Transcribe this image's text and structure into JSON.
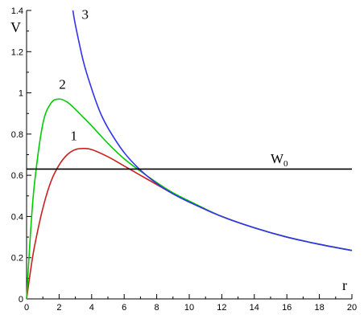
{
  "chart_data": {
    "type": "line",
    "xlabel": "r",
    "ylabel": "V",
    "xlim": [
      0,
      20
    ],
    "ylim": [
      0,
      1.4
    ],
    "x_ticks": [
      "0",
      "2",
      "4",
      "6",
      "8",
      "10",
      "12",
      "14",
      "16",
      "18",
      "20"
    ],
    "y_ticks": [
      "0",
      "0.2",
      "0.4",
      "0.6",
      "0.8",
      "1",
      "1.2",
      "1.4"
    ],
    "grid": false,
    "series": [
      {
        "name": "1",
        "color": "#cc2020",
        "x": [
          0,
          0.25,
          0.5,
          1,
          1.5,
          2,
          2.5,
          3,
          3.5,
          4,
          5,
          6,
          7,
          8,
          9,
          10,
          12,
          14,
          16,
          18,
          20
        ],
        "y": [
          0.0,
          0.14,
          0.26,
          0.44,
          0.57,
          0.65,
          0.7,
          0.725,
          0.73,
          0.725,
          0.69,
          0.645,
          0.6,
          0.555,
          0.51,
          0.47,
          0.4,
          0.345,
          0.3,
          0.265,
          0.235
        ]
      },
      {
        "name": "2",
        "color": "#00cc00",
        "x": [
          0,
          0.25,
          0.5,
          1,
          1.5,
          2,
          2.5,
          3,
          3.5,
          4,
          5,
          6,
          7,
          8,
          9,
          10,
          12,
          14,
          16,
          18,
          20
        ],
        "y": [
          0.0,
          0.33,
          0.57,
          0.85,
          0.95,
          0.97,
          0.955,
          0.92,
          0.88,
          0.84,
          0.755,
          0.68,
          0.62,
          0.565,
          0.515,
          0.475,
          0.4,
          0.345,
          0.3,
          0.265,
          0.235
        ]
      },
      {
        "name": "3",
        "color": "#3333ee",
        "x": [
          2.85,
          3,
          3.5,
          4,
          4.5,
          5,
          6,
          7,
          8,
          9,
          10,
          12,
          14,
          16,
          18,
          20
        ],
        "y": [
          1.4,
          1.33,
          1.15,
          1.02,
          0.91,
          0.83,
          0.71,
          0.625,
          0.56,
          0.51,
          0.47,
          0.4,
          0.345,
          0.3,
          0.265,
          0.235
        ]
      },
      {
        "name": "W0",
        "color": "#000000",
        "x": [
          0,
          20
        ],
        "y": [
          0.63,
          0.63
        ]
      }
    ],
    "annotations": [
      {
        "text": "1",
        "x": 2.9,
        "y": 0.77
      },
      {
        "text": "2",
        "x": 2.2,
        "y": 1.02
      },
      {
        "text": "3",
        "x": 3.6,
        "y": 1.36
      },
      {
        "text": "W",
        "sub": "0",
        "x": 15.0,
        "y": 0.66
      }
    ]
  }
}
